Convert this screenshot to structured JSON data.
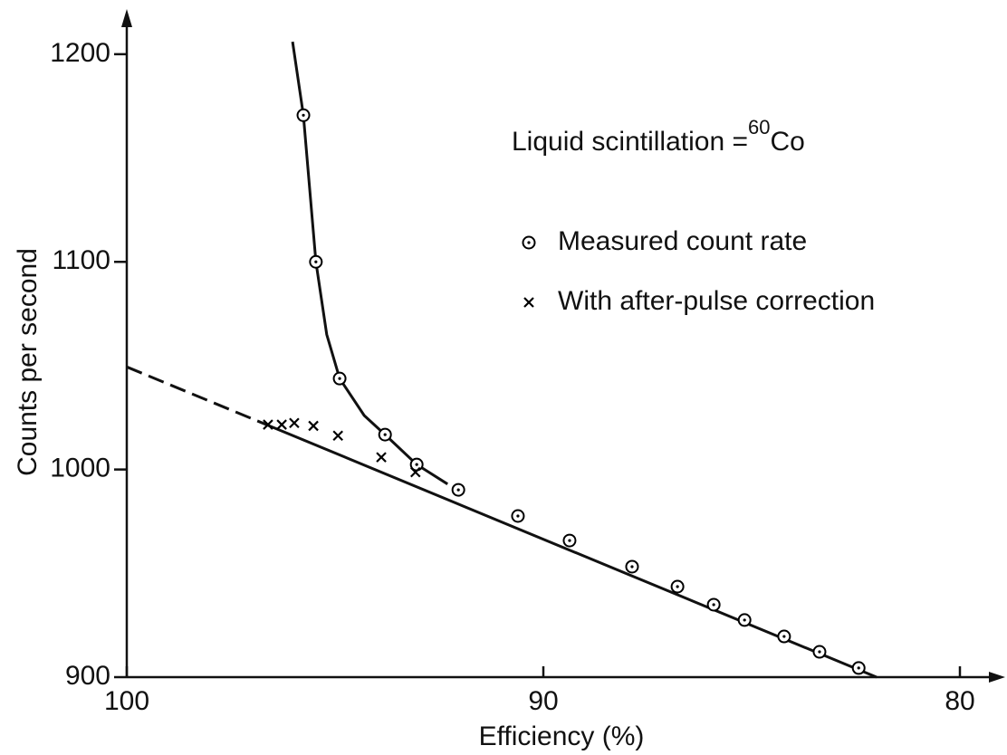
{
  "chart_data": {
    "type": "scatter",
    "x_label": "Efficiency (%)",
    "y_label": "Counts per second",
    "annotation": {
      "text": "Liquid scintillation =",
      "sup": "60",
      "element": "Co"
    },
    "xlim": [
      100,
      79
    ],
    "ylim": [
      900,
      1220
    ],
    "xticks": [
      100,
      90,
      80
    ],
    "yticks": [
      900,
      1000,
      1100,
      1200
    ],
    "series": [
      {
        "name": "Measured count rate",
        "marker": "circle",
        "color": "#000000",
        "x": [
          95.76,
          95.46,
          94.89,
          93.8,
          93.04,
          92.04,
          90.61,
          89.37,
          87.87,
          86.78,
          85.91,
          85.17,
          84.22,
          83.37,
          82.43
        ],
        "values": [
          1170.6,
          1100,
          1043.8,
          1016.8,
          1002.4,
          990.2,
          977.6,
          965.8,
          953.2,
          943.6,
          934.9,
          927.5,
          919.6,
          912.2,
          904.4
        ]
      },
      {
        "name": "With after-pulse correction",
        "marker": "cross",
        "color": "#000000",
        "x": [
          96.61,
          96.28,
          95.98,
          95.52,
          94.93,
          93.89,
          93.07
        ],
        "values": [
          1021.6,
          1021.6,
          1022.4,
          1021,
          1016.3,
          1005.9,
          998.7
        ]
      }
    ],
    "lines": [
      {
        "style": "solid",
        "x": [
          96.02,
          95.76,
          95.46,
          95.2,
          94.89,
          94.3,
          93.8,
          93.04,
          92.3
        ],
        "values": [
          1206,
          1170.6,
          1100,
          1065,
          1043.8,
          1026,
          1016.8,
          1002.4,
          993
        ]
      },
      {
        "style": "dashed",
        "x": [
          100,
          96.6
        ],
        "values": [
          1049.4,
          1021.2
        ]
      },
      {
        "style": "solid",
        "x": [
          96.6,
          82.0
        ],
        "values": [
          1021.2,
          900
        ]
      }
    ]
  }
}
